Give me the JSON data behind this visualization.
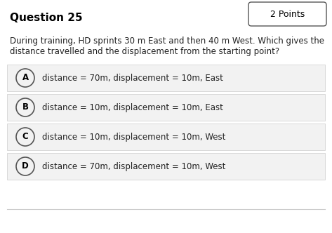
{
  "title": "Question 25",
  "points_label": "2 Points",
  "question_text_line1": "During training, HD sprints 30 m East and then 40 m West. Which gives the",
  "question_text_line2": "distance travelled and the displacement from the starting point?",
  "options": [
    {
      "letter": "A",
      "text": "distance = 70m, displacement = 10m, East"
    },
    {
      "letter": "B",
      "text": "distance = 10m, displacement = 10m, East"
    },
    {
      "letter": "C",
      "text": "distance = 10m, displacement = 10m, West"
    },
    {
      "letter": "D",
      "text": "distance = 70m, displacement = 10m, West"
    }
  ],
  "bg_color": "#ffffff",
  "option_bg_color": "#f2f2f2",
  "option_border_color": "#cccccc",
  "title_fontsize": 11,
  "points_fontsize": 9,
  "question_fontsize": 8.5,
  "option_fontsize": 8.5,
  "title_color": "#000000",
  "text_color": "#222222",
  "circle_color": "#555555",
  "points_box_color": "#ffffff",
  "bottom_line_color": "#cccccc"
}
